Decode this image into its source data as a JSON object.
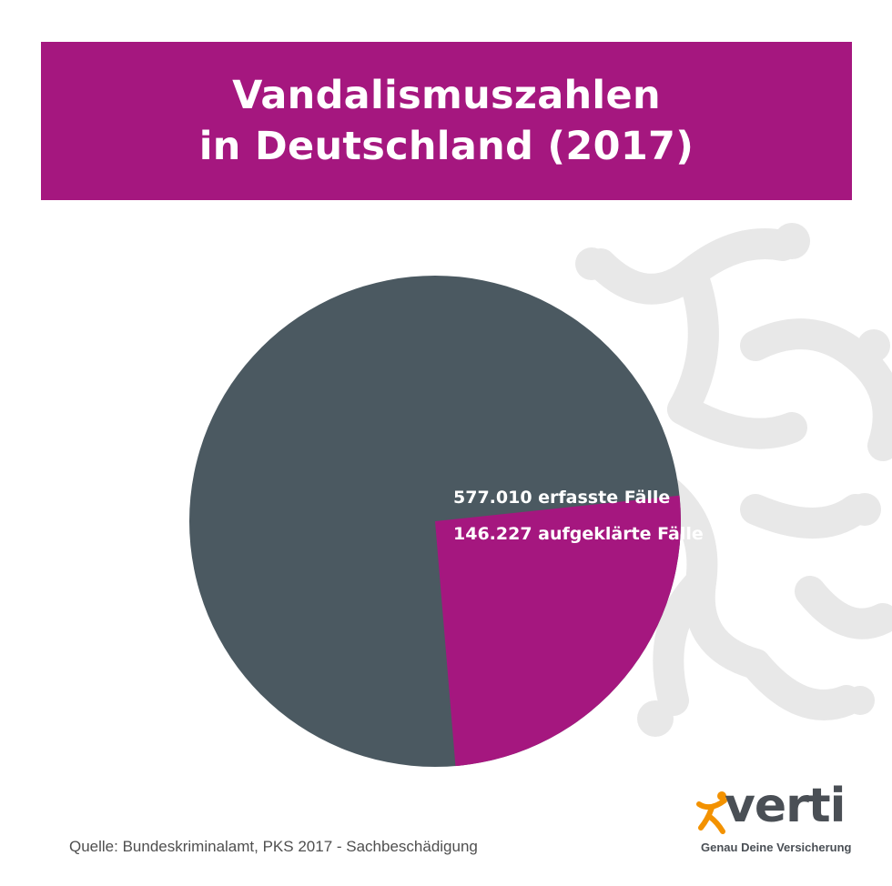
{
  "colors": {
    "banner": "#a5177f",
    "slice_total": "#4b5961",
    "slice_solved": "#a5177f",
    "decoration": "#e8e8e8",
    "logo_accent": "#f39200"
  },
  "header": {
    "title_line1": "Vandalismuszahlen",
    "title_line2": "in Deutschland (2017)"
  },
  "chart_data": {
    "type": "pie",
    "title": "Vandalismuszahlen in Deutschland (2017)",
    "slices": [
      {
        "label": "577.010 erfasste Fälle",
        "value": 577010,
        "color": "#4b5961"
      },
      {
        "label": "146.227 aufgeklärte Fälle",
        "value": 146227,
        "color": "#a5177f"
      }
    ],
    "notes": "The magenta slice (aufgeklärte Fälle) is drawn as a portion of the grey total (erfasste Fälle)."
  },
  "footer": {
    "source": "Quelle: Bundeskriminalamt, PKS 2017 - Sachbeschädigung"
  },
  "logo": {
    "name": "verti",
    "tagline": "Genau Deine Versicherung",
    "icon": "running-figure-icon"
  }
}
